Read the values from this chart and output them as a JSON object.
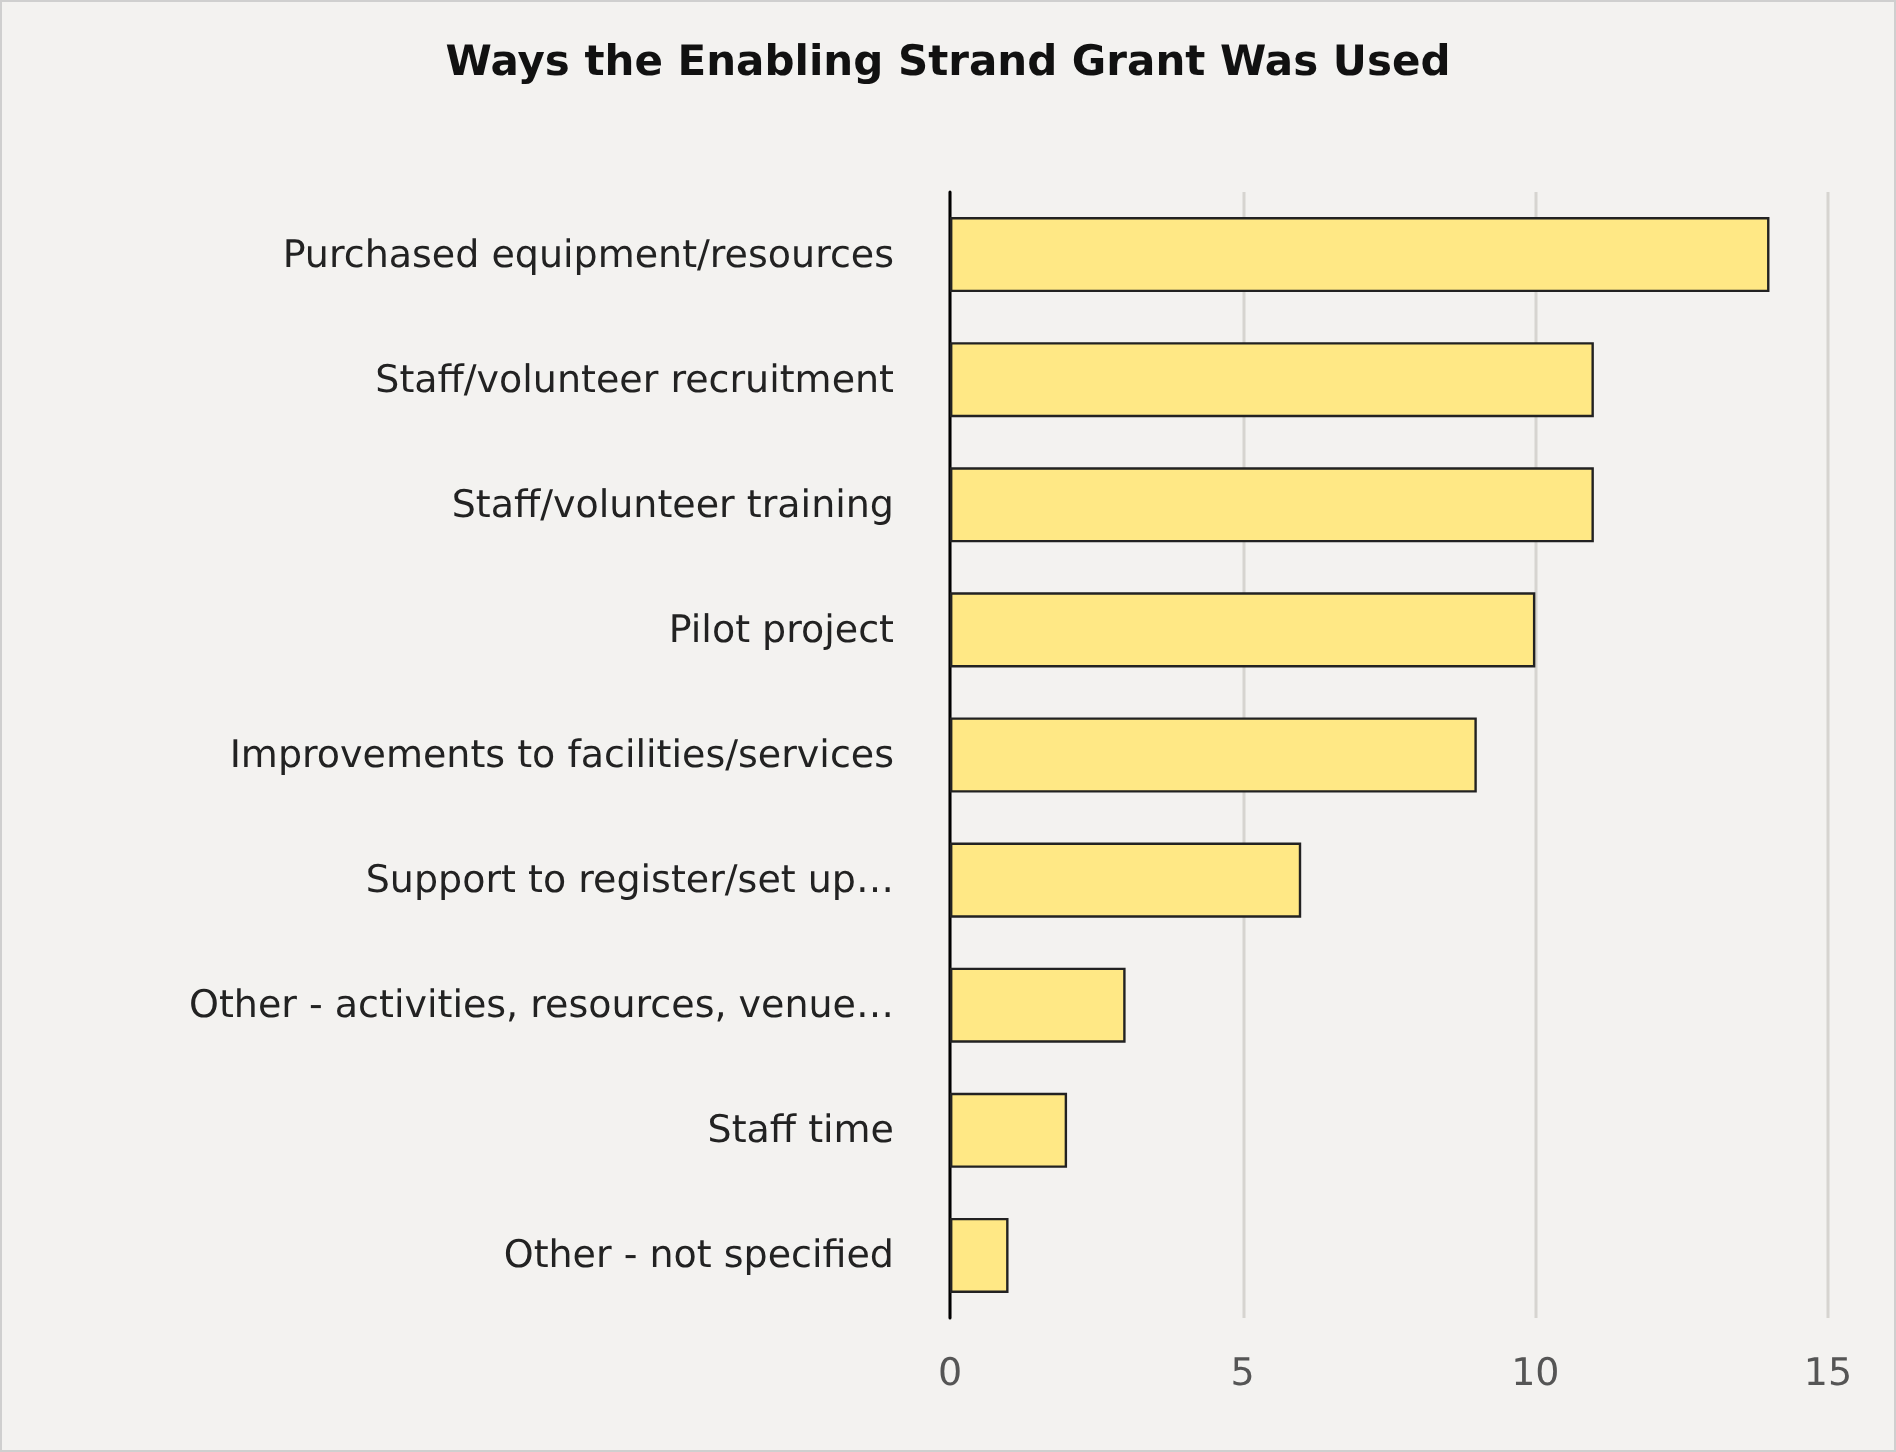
{
  "chart_data": {
    "type": "bar",
    "title": "Ways the Enabling Strand Grant Was Used",
    "orientation": "horizontal",
    "categories": [
      "Purchased equipment/resources",
      "Staff/volunteer recruitment",
      "Staff/volunteer training",
      "Pilot project",
      "Improvements to facilities/services",
      "Support to register/set up…",
      "Other - activities, resources, venue…",
      "Staff time",
      "Other - not specified"
    ],
    "values": [
      14,
      11,
      11,
      10,
      9,
      6,
      3,
      2,
      1
    ],
    "color": "#ffe885",
    "xlim": [
      0,
      15
    ],
    "xticks": [
      0,
      5,
      10,
      15
    ],
    "grid": "x"
  }
}
